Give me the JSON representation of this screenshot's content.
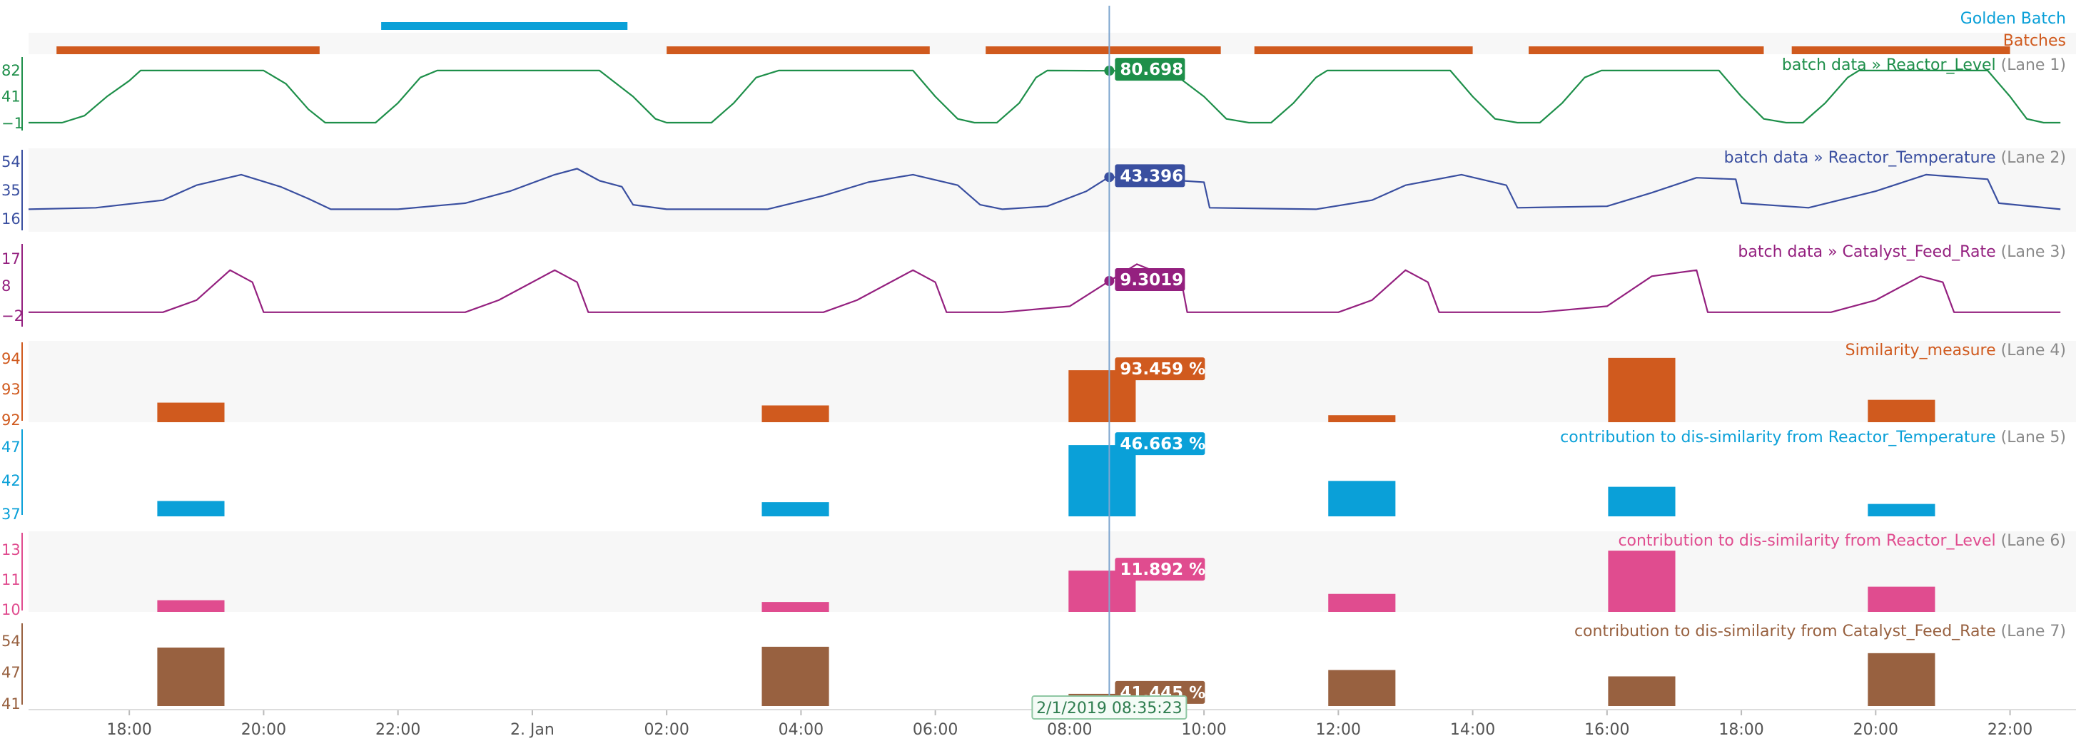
{
  "header": {
    "golden_label": "Golden Batch",
    "batches_label": "Batches"
  },
  "colors": {
    "golden": "#0aa0d8",
    "batches": "#d05a1e",
    "lane1": "#1e8f4a",
    "lane2": "#3a4fa0",
    "lane3": "#94207f",
    "lane4": "#d05a1e",
    "lane5": "#0aa0d8",
    "lane6": "#e04c8f",
    "lane7": "#986140"
  },
  "timeline": {
    "start": "2019-01-01T16:30:00",
    "end": "2019-01-02T22:50:00",
    "cursor": "2019-01-02T08:35:23",
    "cursor_label": "2/1/2019 08:35:23"
  },
  "chart_data": {
    "type": "line",
    "x_ticks": [
      "18:00",
      "20:00",
      "22:00",
      "2. Jan",
      "02:00",
      "04:00",
      "06:00",
      "08:00",
      "10:00",
      "12:00",
      "14:00",
      "16:00",
      "18:00",
      "20:00",
      "22:00"
    ],
    "golden_batch": [
      {
        "start": "2019-01-01T21:45:00",
        "end": "2019-01-02T01:25:00"
      }
    ],
    "batches": [
      {
        "start": "2019-01-01T16:55:00",
        "end": "2019-01-01T20:50:00"
      },
      {
        "start": "2019-01-02T02:00:00",
        "end": "2019-01-02T05:55:00"
      },
      {
        "start": "2019-01-02T06:45:00",
        "end": "2019-01-02T10:15:00"
      },
      {
        "start": "2019-01-02T10:45:00",
        "end": "2019-01-02T14:00:00"
      },
      {
        "start": "2019-01-02T14:50:00",
        "end": "2019-01-02T18:20:00"
      },
      {
        "start": "2019-01-02T18:45:00",
        "end": "2019-01-02T22:00:00"
      }
    ],
    "lanes": [
      {
        "type": "line",
        "title": "batch data » Reactor_Level",
        "suffix": "(Lane 1)",
        "yticks": [
          "82",
          "41",
          "-1"
        ],
        "ylim": [
          -1,
          82
        ],
        "value_label": "80.698",
        "points": [
          [
            "2019-01-01T16:30",
            -1
          ],
          [
            "2019-01-01T17:00",
            -1
          ],
          [
            "2019-01-01T17:20",
            10
          ],
          [
            "2019-01-01T17:40",
            40
          ],
          [
            "2019-01-01T18:00",
            65
          ],
          [
            "2019-01-01T18:10",
            81
          ],
          [
            "2019-01-01T19:00",
            81
          ],
          [
            "2019-01-01T20:00",
            81
          ],
          [
            "2019-01-01T20:20",
            60
          ],
          [
            "2019-01-01T20:40",
            20
          ],
          [
            "2019-01-01T20:55",
            -1
          ],
          [
            "2019-01-01T21:40",
            -1
          ],
          [
            "2019-01-01T22:00",
            30
          ],
          [
            "2019-01-01T22:20",
            70
          ],
          [
            "2019-01-01T22:35",
            81
          ],
          [
            "2019-01-02T00:00",
            81
          ],
          [
            "2019-01-02T01:00",
            81
          ],
          [
            "2019-01-02T01:30",
            40
          ],
          [
            "2019-01-02T01:50",
            5
          ],
          [
            "2019-01-02T02:00",
            -1
          ],
          [
            "2019-01-02T02:40",
            -1
          ],
          [
            "2019-01-02T03:00",
            30
          ],
          [
            "2019-01-02T03:20",
            70
          ],
          [
            "2019-01-02T03:40",
            81
          ],
          [
            "2019-01-02T05:00",
            81
          ],
          [
            "2019-01-02T05:40",
            81
          ],
          [
            "2019-01-02T06:00",
            40
          ],
          [
            "2019-01-02T06:20",
            5
          ],
          [
            "2019-01-02T06:35",
            -1
          ],
          [
            "2019-01-02T06:55",
            -1
          ],
          [
            "2019-01-02T07:15",
            30
          ],
          [
            "2019-01-02T07:30",
            70
          ],
          [
            "2019-01-02T07:40",
            81
          ],
          [
            "2019-01-02T08:35",
            80.7
          ],
          [
            "2019-01-02T09:30",
            80
          ],
          [
            "2019-01-02T10:00",
            40
          ],
          [
            "2019-01-02T10:20",
            5
          ],
          [
            "2019-01-02T10:40",
            -1
          ],
          [
            "2019-01-02T11:00",
            -1
          ],
          [
            "2019-01-02T11:20",
            30
          ],
          [
            "2019-01-02T11:40",
            70
          ],
          [
            "2019-01-02T11:50",
            81
          ],
          [
            "2019-01-02T13:00",
            81
          ],
          [
            "2019-01-02T13:40",
            81
          ],
          [
            "2019-01-02T14:00",
            40
          ],
          [
            "2019-01-02T14:20",
            5
          ],
          [
            "2019-01-02T14:40",
            -1
          ],
          [
            "2019-01-02T15:00",
            -1
          ],
          [
            "2019-01-02T15:20",
            30
          ],
          [
            "2019-01-02T15:40",
            70
          ],
          [
            "2019-01-02T15:55",
            81
          ],
          [
            "2019-01-02T17:00",
            81
          ],
          [
            "2019-01-02T17:40",
            81
          ],
          [
            "2019-01-02T18:00",
            40
          ],
          [
            "2019-01-02T18:20",
            5
          ],
          [
            "2019-01-02T18:40",
            -1
          ],
          [
            "2019-01-02T18:55",
            -1
          ],
          [
            "2019-01-02T19:15",
            30
          ],
          [
            "2019-01-02T19:35",
            70
          ],
          [
            "2019-01-02T19:45",
            81
          ],
          [
            "2019-01-02T21:00",
            81
          ],
          [
            "2019-01-02T21:40",
            81
          ],
          [
            "2019-01-02T22:00",
            40
          ],
          [
            "2019-01-02T22:15",
            5
          ],
          [
            "2019-01-02T22:30",
            -1
          ],
          [
            "2019-01-02T22:45",
            -1
          ]
        ]
      },
      {
        "type": "line",
        "title": "batch data » Reactor_Temperature",
        "suffix": "(Lane 2)",
        "yticks": [
          "54",
          "35",
          "16"
        ],
        "ylim": [
          16,
          54
        ],
        "value_label": "43.396",
        "points": [
          [
            "2019-01-01T16:30",
            22
          ],
          [
            "2019-01-01T17:30",
            23
          ],
          [
            "2019-01-01T18:30",
            28
          ],
          [
            "2019-01-01T19:00",
            38
          ],
          [
            "2019-01-01T19:40",
            45
          ],
          [
            "2019-01-01T20:15",
            37
          ],
          [
            "2019-01-01T20:40",
            29
          ],
          [
            "2019-01-01T21:00",
            22
          ],
          [
            "2019-01-01T22:00",
            22
          ],
          [
            "2019-01-01T23:00",
            26
          ],
          [
            "2019-01-01T23:40",
            34
          ],
          [
            "2019-01-02T00:20",
            45
          ],
          [
            "2019-01-02T00:40",
            49
          ],
          [
            "2019-01-02T01:00",
            41
          ],
          [
            "2019-01-02T01:20",
            37
          ],
          [
            "2019-01-02T01:30",
            25
          ],
          [
            "2019-01-02T02:00",
            22
          ],
          [
            "2019-01-02T03:30",
            22
          ],
          [
            "2019-01-02T04:20",
            31
          ],
          [
            "2019-01-02T05:00",
            40
          ],
          [
            "2019-01-02T05:40",
            45
          ],
          [
            "2019-01-02T06:20",
            38
          ],
          [
            "2019-01-02T06:40",
            25
          ],
          [
            "2019-01-02T07:00",
            22
          ],
          [
            "2019-01-02T07:40",
            24
          ],
          [
            "2019-01-02T08:15",
            34
          ],
          [
            "2019-01-02T08:35",
            43.4
          ],
          [
            "2019-01-02T09:00",
            43
          ],
          [
            "2019-01-02T10:00",
            40
          ],
          [
            "2019-01-02T10:05",
            23
          ],
          [
            "2019-01-02T11:40",
            22
          ],
          [
            "2019-01-02T12:30",
            28
          ],
          [
            "2019-01-02T13:00",
            38
          ],
          [
            "2019-01-02T13:50",
            45
          ],
          [
            "2019-01-02T14:30",
            38
          ],
          [
            "2019-01-02T14:40",
            23
          ],
          [
            "2019-01-02T16:00",
            24
          ],
          [
            "2019-01-02T16:40",
            33
          ],
          [
            "2019-01-02T17:20",
            43
          ],
          [
            "2019-01-02T17:55",
            42
          ],
          [
            "2019-01-02T18:00",
            26
          ],
          [
            "2019-01-02T19:00",
            23
          ],
          [
            "2019-01-02T20:00",
            34
          ],
          [
            "2019-01-02T20:45",
            45
          ],
          [
            "2019-01-02T21:40",
            42
          ],
          [
            "2019-01-02T21:50",
            26
          ],
          [
            "2019-01-02T22:45",
            22
          ]
        ]
      },
      {
        "type": "line",
        "title": "batch data » Catalyst_Feed_Rate",
        "suffix": "(Lane 3)",
        "yticks": [
          "17",
          "8",
          "-2"
        ],
        "ylim": [
          -2,
          17
        ],
        "value_label": "9.3019",
        "points": [
          [
            "2019-01-01T16:30",
            -1
          ],
          [
            "2019-01-01T18:30",
            -1
          ],
          [
            "2019-01-01T19:00",
            3
          ],
          [
            "2019-01-01T19:30",
            13
          ],
          [
            "2019-01-01T19:50",
            9
          ],
          [
            "2019-01-01T20:00",
            -1
          ],
          [
            "2019-01-01T21:00",
            -1
          ],
          [
            "2019-01-01T23:00",
            -1
          ],
          [
            "2019-01-01T23:30",
            3
          ],
          [
            "2019-01-02T00:20",
            13
          ],
          [
            "2019-01-02T00:40",
            9
          ],
          [
            "2019-01-02T00:50",
            -1
          ],
          [
            "2019-01-02T02:00",
            -1
          ],
          [
            "2019-01-02T04:20",
            -1
          ],
          [
            "2019-01-02T04:50",
            3
          ],
          [
            "2019-01-02T05:40",
            13
          ],
          [
            "2019-01-02T06:00",
            9
          ],
          [
            "2019-01-02T06:10",
            -1
          ],
          [
            "2019-01-02T07:00",
            -1
          ],
          [
            "2019-01-02T08:00",
            1
          ],
          [
            "2019-01-02T08:35",
            9.3
          ],
          [
            "2019-01-02T09:00",
            15
          ],
          [
            "2019-01-02T09:40",
            9
          ],
          [
            "2019-01-02T09:45",
            -1
          ],
          [
            "2019-01-02T12:00",
            -1
          ],
          [
            "2019-01-02T12:30",
            3
          ],
          [
            "2019-01-02T13:00",
            13
          ],
          [
            "2019-01-02T13:20",
            9
          ],
          [
            "2019-01-02T13:30",
            -1
          ],
          [
            "2019-01-02T15:00",
            -1
          ],
          [
            "2019-01-02T16:00",
            1
          ],
          [
            "2019-01-02T16:40",
            11
          ],
          [
            "2019-01-02T17:20",
            13
          ],
          [
            "2019-01-02T17:30",
            -1
          ],
          [
            "2019-01-02T19:20",
            -1
          ],
          [
            "2019-01-02T20:00",
            3
          ],
          [
            "2019-01-02T20:40",
            11
          ],
          [
            "2019-01-02T21:00",
            9
          ],
          [
            "2019-01-02T21:10",
            -1
          ],
          [
            "2019-01-02T22:45",
            -1
          ]
        ]
      },
      {
        "type": "bar",
        "title": "Similarity_measure",
        "suffix": "(Lane 4)",
        "yticks": [
          "94",
          "93",
          "92"
        ],
        "ylim": [
          91.6,
          94.1
        ],
        "value_label": "93.459 %",
        "bars": [
          {
            "start": "2019-01-01T18:25",
            "end": "2019-01-01T19:25",
            "value": 92.3
          },
          {
            "start": "2019-01-02T03:25",
            "end": "2019-01-02T04:25",
            "value": 92.2
          },
          {
            "start": "2019-01-02T07:59",
            "end": "2019-01-02T08:59",
            "value": 93.459
          },
          {
            "start": "2019-01-02T11:51",
            "end": "2019-01-02T12:51",
            "value": 91.85
          },
          {
            "start": "2019-01-02T16:01",
            "end": "2019-01-02T17:01",
            "value": 93.9
          },
          {
            "start": "2019-01-02T19:53",
            "end": "2019-01-02T20:53",
            "value": 92.4
          }
        ]
      },
      {
        "type": "bar",
        "title": "contribution to dis-similarity from Reactor_Temperature",
        "suffix": "(Lane 5)",
        "yticks": [
          "47",
          "42",
          "37"
        ],
        "ylim": [
          34.6,
          47.4
        ],
        "value_label": "46.663 %",
        "bars": [
          {
            "start": "2019-01-01T18:25",
            "end": "2019-01-01T19:25",
            "value": 37.2
          },
          {
            "start": "2019-01-02T03:25",
            "end": "2019-01-02T04:25",
            "value": 37.0
          },
          {
            "start": "2019-01-02T07:59",
            "end": "2019-01-02T08:59",
            "value": 46.663
          },
          {
            "start": "2019-01-02T11:51",
            "end": "2019-01-02T12:51",
            "value": 40.6
          },
          {
            "start": "2019-01-02T16:01",
            "end": "2019-01-02T17:01",
            "value": 39.6
          },
          {
            "start": "2019-01-02T19:53",
            "end": "2019-01-02T20:53",
            "value": 36.7
          }
        ]
      },
      {
        "type": "bar",
        "title": "contribution to dis-similarity from Reactor_Level",
        "suffix": "(Lane 6)",
        "yticks": [
          "13",
          "11",
          "10"
        ],
        "ylim": [
          9.6,
          13.4
        ],
        "value_label": "11.892 %",
        "bars": [
          {
            "start": "2019-01-01T18:25",
            "end": "2019-01-01T19:25",
            "value": 10.25
          },
          {
            "start": "2019-01-02T03:25",
            "end": "2019-01-02T04:25",
            "value": 10.15
          },
          {
            "start": "2019-01-02T07:59",
            "end": "2019-01-02T08:59",
            "value": 11.892
          },
          {
            "start": "2019-01-02T11:51",
            "end": "2019-01-02T12:51",
            "value": 10.6
          },
          {
            "start": "2019-01-02T16:01",
            "end": "2019-01-02T17:01",
            "value": 13.0
          },
          {
            "start": "2019-01-02T19:53",
            "end": "2019-01-02T20:53",
            "value": 11.0
          }
        ]
      },
      {
        "type": "bar",
        "title": "contribution to dis-similarity from Catalyst_Feed_Rate",
        "suffix": "(Lane 7)",
        "yticks": [
          "54",
          "47",
          "41"
        ],
        "ylim": [
          38.4,
          56.2
        ],
        "value_label": "41.445 %",
        "bars": [
          {
            "start": "2019-01-01T18:25",
            "end": "2019-01-01T19:25",
            "value": 53.0
          },
          {
            "start": "2019-01-02T03:25",
            "end": "2019-01-02T04:25",
            "value": 53.2
          },
          {
            "start": "2019-01-02T07:59",
            "end": "2019-01-02T08:59",
            "value": 41.445
          },
          {
            "start": "2019-01-02T11:51",
            "end": "2019-01-02T12:51",
            "value": 47.4
          },
          {
            "start": "2019-01-02T16:01",
            "end": "2019-01-02T17:01",
            "value": 45.8
          },
          {
            "start": "2019-01-02T19:53",
            "end": "2019-01-02T20:53",
            "value": 51.6
          }
        ]
      }
    ]
  }
}
